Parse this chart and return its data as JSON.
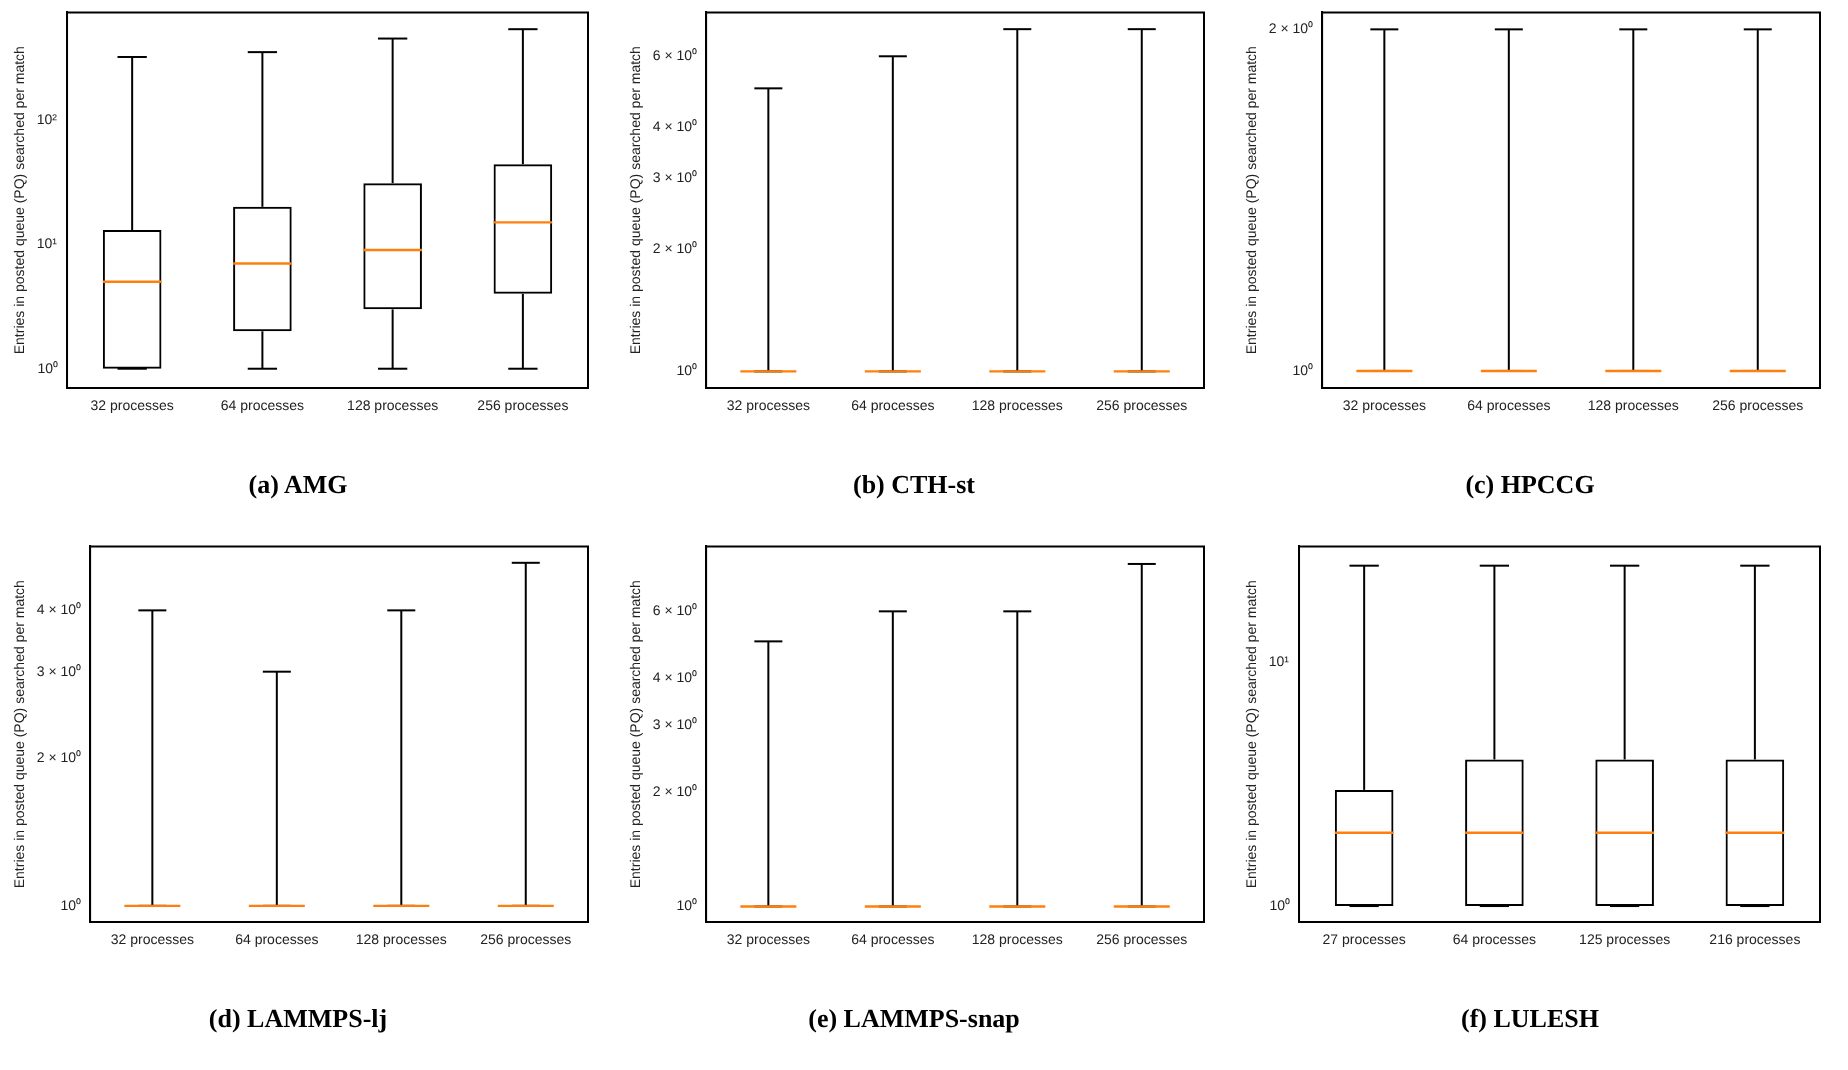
{
  "chart_data": [
    {
      "type": "box",
      "title": "(a) AMG",
      "ylabel": "Entries in posted queue (PQ) searched per match",
      "categories": [
        "32 processes",
        "64 processes",
        "128 processes",
        "256 processes"
      ],
      "log": true,
      "grid": false,
      "legend": false,
      "ylim": [
        0.71,
        730
      ],
      "yticks": [
        {
          "value": 1,
          "label": "10⁰"
        },
        {
          "value": 10,
          "label": "10¹"
        },
        {
          "value": 100,
          "label": "10²"
        }
      ],
      "boxes": [
        {
          "low": 1,
          "q1": 1,
          "median": 5,
          "q3": 13,
          "high": 320
        },
        {
          "low": 1,
          "q1": 2,
          "median": 7,
          "q3": 20,
          "high": 350
        },
        {
          "low": 1,
          "q1": 3,
          "median": 9,
          "q3": 31,
          "high": 450
        },
        {
          "low": 1,
          "q1": 4,
          "median": 15,
          "q3": 44,
          "high": 535
        }
      ]
    },
    {
      "type": "box",
      "title": "(b) CTH-st",
      "ylabel": "Entries in posted queue (PQ) searched per match",
      "categories": [
        "32 processes",
        "64 processes",
        "128 processes",
        "256 processes"
      ],
      "log": true,
      "grid": false,
      "legend": false,
      "ylim": [
        0.91,
        7.7
      ],
      "yticks": [
        {
          "value": 1,
          "label": "10⁰"
        },
        {
          "value": 2,
          "label": "2 × 10⁰"
        },
        {
          "value": 3,
          "label": "3 × 10⁰"
        },
        {
          "value": 4,
          "label": "4 × 10⁰"
        },
        {
          "value": 6,
          "label": "6 × 10⁰"
        }
      ],
      "boxes": [
        {
          "low": 1,
          "q1": 1,
          "median": 1,
          "q3": 1,
          "high": 5
        },
        {
          "low": 1,
          "q1": 1,
          "median": 1,
          "q3": 1,
          "high": 6
        },
        {
          "low": 1,
          "q1": 1,
          "median": 1,
          "q3": 1,
          "high": 7
        },
        {
          "low": 1,
          "q1": 1,
          "median": 1,
          "q3": 1,
          "high": 7
        }
      ]
    },
    {
      "type": "box",
      "title": "(c) HPCCG",
      "ylabel": "Entries in posted queue (PQ) searched per match",
      "categories": [
        "32 processes",
        "64 processes",
        "128 processes",
        "256 processes"
      ],
      "log": true,
      "grid": false,
      "legend": false,
      "ylim": [
        0.966,
        2.07
      ],
      "yticks": [
        {
          "value": 1,
          "label": "10⁰"
        },
        {
          "value": 2,
          "label": "2 × 10⁰"
        }
      ],
      "boxes": [
        {
          "low": 1,
          "q1": 1,
          "median": 1,
          "q3": 1,
          "high": 2
        },
        {
          "low": 1,
          "q1": 1,
          "median": 1,
          "q3": 1,
          "high": 2
        },
        {
          "low": 1,
          "q1": 1,
          "median": 1,
          "q3": 1,
          "high": 2
        },
        {
          "low": 1,
          "q1": 1,
          "median": 1,
          "q3": 1,
          "high": 2
        }
      ]
    },
    {
      "type": "box",
      "title": "(d) LAMMPS-lj",
      "ylabel": "Entries in posted queue (PQ) searched per match",
      "categories": [
        "32 processes",
        "64 processes",
        "128 processes",
        "256 processes"
      ],
      "log": true,
      "grid": false,
      "legend": false,
      "ylim": [
        0.927,
        5.4
      ],
      "yticks": [
        {
          "value": 1,
          "label": "10⁰"
        },
        {
          "value": 2,
          "label": "2 × 10⁰"
        },
        {
          "value": 3,
          "label": "3 × 10⁰"
        },
        {
          "value": 4,
          "label": "4 × 10⁰"
        }
      ],
      "boxes": [
        {
          "low": 1,
          "q1": 1,
          "median": 1,
          "q3": 1,
          "high": 4
        },
        {
          "low": 1,
          "q1": 1,
          "median": 1,
          "q3": 1,
          "high": 3
        },
        {
          "low": 1,
          "q1": 1,
          "median": 1,
          "q3": 1,
          "high": 4
        },
        {
          "low": 1,
          "q1": 1,
          "median": 1,
          "q3": 1,
          "high": 5
        }
      ]
    },
    {
      "type": "box",
      "title": "(e) LAMMPS-snap",
      "ylabel": "Entries in posted queue (PQ) searched per match",
      "categories": [
        "32 processes",
        "64 processes",
        "128 processes",
        "256 processes"
      ],
      "log": true,
      "grid": false,
      "legend": false,
      "ylim": [
        0.91,
        8.9
      ],
      "yticks": [
        {
          "value": 1,
          "label": "10⁰"
        },
        {
          "value": 2,
          "label": "2 × 10⁰"
        },
        {
          "value": 3,
          "label": "3 × 10⁰"
        },
        {
          "value": 4,
          "label": "4 × 10⁰"
        },
        {
          "value": 6,
          "label": "6 × 10⁰"
        }
      ],
      "boxes": [
        {
          "low": 1,
          "q1": 1,
          "median": 1,
          "q3": 1,
          "high": 5
        },
        {
          "low": 1,
          "q1": 1,
          "median": 1,
          "q3": 1,
          "high": 6
        },
        {
          "low": 1,
          "q1": 1,
          "median": 1,
          "q3": 1,
          "high": 6
        },
        {
          "low": 1,
          "q1": 1,
          "median": 1,
          "q3": 1,
          "high": 8
        }
      ]
    },
    {
      "type": "box",
      "title": "(f) LULESH",
      "ylabel": "Entries in posted queue (PQ) searched per match",
      "categories": [
        "27 processes",
        "64 processes",
        "125 processes",
        "216 processes"
      ],
      "log": true,
      "grid": false,
      "legend": false,
      "ylim": [
        0.86,
        30
      ],
      "yticks": [
        {
          "value": 1,
          "label": "10⁰"
        },
        {
          "value": 10,
          "label": "10¹"
        }
      ],
      "boxes": [
        {
          "low": 1,
          "q1": 1,
          "median": 2,
          "q3": 3,
          "high": 25
        },
        {
          "low": 1,
          "q1": 1,
          "median": 2,
          "q3": 4,
          "high": 25
        },
        {
          "low": 1,
          "q1": 1,
          "median": 2,
          "q3": 4,
          "high": 25
        },
        {
          "low": 1,
          "q1": 1,
          "median": 2,
          "q3": 4,
          "high": 25
        }
      ]
    }
  ]
}
